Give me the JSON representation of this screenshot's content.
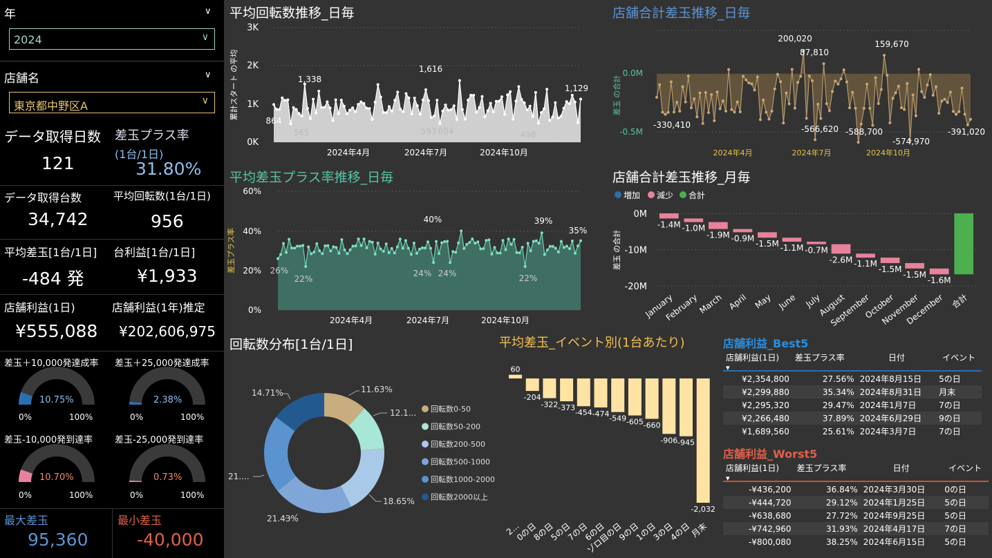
{
  "filters": {
    "year_label": "年",
    "year_value": "2024",
    "store_label": "店舗名",
    "store_value": "東京都中野区A"
  },
  "kpis": {
    "days_label": "データ取得日数",
    "days_value": "121",
    "plus_rate_label": "差玉プラス率",
    "plus_rate_sub": "(1台/1日)",
    "plus_rate_value": "31.80%",
    "units_label": "データ取得台数",
    "units_value": "34,742",
    "avg_spins_label": "平均回転数(1台/1日)",
    "avg_spins_value": "956",
    "avg_diff_label": "平均差玉[1台/1日]",
    "avg_diff_value": "-484 発",
    "profit_unit_label": "台利益[1台/1日]",
    "profit_unit_value": "¥1,933",
    "store_profit_label": "店舗利益(1日)",
    "store_profit_value": "¥555,088",
    "store_profit_year_label": "店舗利益(1年)推定",
    "store_profit_year_value": "¥202,606,975",
    "max_label": "最大差玉",
    "max_value": "95,360",
    "min_label": "最小差玉",
    "min_value": "-40,000"
  },
  "gauges": [
    {
      "label": "差玉＋10,000発達成率",
      "value": "10.75%",
      "fraction": 0.1075,
      "color": "#2a6fb0",
      "text_color": "#8fbfea",
      "min": "0%",
      "max": "100%"
    },
    {
      "label": "差玉＋25,000発達成率",
      "value": "2.38%",
      "fraction": 0.0238,
      "color": "#2a6fb0",
      "text_color": "#8fbfea",
      "min": "0%",
      "max": "100%"
    },
    {
      "label": "差玉-10,000発到達率",
      "value": "10.70%",
      "fraction": 0.107,
      "color": "#e8829c",
      "text_color": "#f08a6a",
      "min": "0%",
      "max": "100%"
    },
    {
      "label": "差玉-25,000発到達率",
      "value": "0.73%",
      "fraction": 0.0073,
      "color": "#e8829c",
      "text_color": "#f08a6a",
      "min": "0%",
      "max": "100%"
    }
  ],
  "charts": {
    "spins": {
      "title": "平均回転数推移_日毎",
      "ylabel": "累計スタート の平均",
      "yticks": [
        "3K",
        "2K",
        "1K",
        "0K"
      ],
      "xticks": [
        "2024年4月",
        "2024年7月",
        "2024年10月"
      ],
      "annotations": [
        "1,338",
        "1,616",
        "1,129",
        "864",
        "565",
        "593",
        "604",
        "498"
      ]
    },
    "store_diff": {
      "title": "店舗合計差玉推移_日毎",
      "ylabel": "差玉 の合計",
      "yticks": [
        "0.0M",
        "-0.5M"
      ],
      "xticks": [
        "2024年4月",
        "2024年7月",
        "2024年10月"
      ],
      "annotations": [
        "200,020",
        "87,810",
        "159,670",
        "-330,410",
        "-566,620",
        "-588,700",
        "-574,970",
        "-391,020"
      ]
    },
    "plus_rate": {
      "title": "平均差玉プラス率推移_日毎",
      "ylabel": "差玉プラス率",
      "yticks": [
        "60%",
        "40%",
        "20%",
        "0%"
      ],
      "xticks": [
        "2024年4月",
        "2024年7月",
        "2024年10月"
      ],
      "annotations": [
        "40%",
        "39%",
        "35%",
        "26%",
        "22%",
        "24%",
        "24%",
        "22%"
      ]
    },
    "spin_dist_title": "回転数分布[1台/1日]",
    "event_title": "平均差玉_イベント別(1台あたり)",
    "best_title": "店舗利益_Best5",
    "worst_title": "店舗利益_Worst5"
  },
  "chart_data": [
    {
      "type": "bar",
      "title": "店舗合計差玉推移_月毎",
      "ylabel": "差玉 の合計",
      "legend": [
        "増加",
        "減少",
        "合計"
      ],
      "legend_colors": [
        "#2a6fb0",
        "#e8829c",
        "#4caf50"
      ],
      "yticks": [
        "0M",
        "-10M",
        "-20M"
      ],
      "ylim": [
        -20,
        0
      ],
      "categories": [
        "January",
        "February",
        "March",
        "April",
        "May",
        "June",
        "July",
        "August",
        "September",
        "October",
        "November",
        "December",
        "合計"
      ],
      "values": [
        -1.4,
        -1.0,
        -1.9,
        -0.9,
        -1.5,
        -1.1,
        -0.7,
        -2.6,
        -1.1,
        -1.5,
        -1.5,
        -1.6,
        -16.8
      ],
      "labels": [
        "-1.4M",
        "-1.0M",
        "-1.9M",
        "-0.9M",
        "-1.5M",
        "-1.1M",
        "-0.7M",
        "-2.6M",
        "-1.1M",
        "-1.5M",
        "-1.5M",
        "-1.6M",
        ""
      ]
    },
    {
      "type": "pie",
      "title": "回転数分布[1台/1日]",
      "categories": [
        "回転数0-50",
        "回転数50-200",
        "回転数200-500",
        "回転数500-1000",
        "回転数1000-2000",
        "回転数2000以上"
      ],
      "values": [
        11.63,
        12.1,
        18.65,
        21.43,
        21.0,
        14.71
      ],
      "labels": [
        "11.63%",
        "12.1...",
        "18.65%",
        "21.43%",
        "21....",
        "14.71%"
      ],
      "colors": [
        "#c8ad7f",
        "#a8e6d6",
        "#a9c9e8",
        "#7fa6d6",
        "#5b93d1",
        "#225a8f"
      ]
    },
    {
      "type": "bar",
      "title": "平均差玉_イベント別(1台あたり)",
      "categories": [
        "2...",
        "0の日",
        "8の日",
        "5の日",
        "7の日",
        "6の日",
        "ゾロ目の日",
        "9の日",
        "1の日",
        "3の日",
        "4の日",
        "月末"
      ],
      "values": [
        60,
        -204,
        -322,
        -373,
        -454,
        -474,
        -549,
        -605,
        -660,
        -906,
        -945,
        -2032
      ],
      "labels": [
        "60",
        "-204",
        "-322",
        "-373",
        "-454",
        "-474",
        "-549",
        "-605",
        "-660",
        "-906",
        "-945",
        "-2,032"
      ]
    },
    {
      "type": "table",
      "title": "店舗利益_Best5",
      "columns": [
        "店舗利益(1日)",
        "差玉プラス率",
        "日付",
        "イベント"
      ],
      "rows": [
        [
          "¥2,354,800",
          "27.56%",
          "2024年8月15日",
          "5の日"
        ],
        [
          "¥2,299,880",
          "35.34%",
          "2024年8月31日",
          "月末"
        ],
        [
          "¥2,295,320",
          "29.47%",
          "2024年1月7日",
          "7の日"
        ],
        [
          "¥2,266,480",
          "37.89%",
          "2024年6月29日",
          "9の日"
        ],
        [
          "¥1,689,560",
          "25.61%",
          "2024年3月7日",
          "7の日"
        ]
      ]
    },
    {
      "type": "table",
      "title": "店舗利益_Worst5",
      "columns": [
        "店舗利益(1日)",
        "差玉プラス率",
        "日付",
        "イベント"
      ],
      "rows": [
        [
          "-¥436,200",
          "36.84%",
          "2024年3月30日",
          "0の日"
        ],
        [
          "-¥444,720",
          "29.12%",
          "2024年1月25日",
          "5の日"
        ],
        [
          "-¥638,680",
          "27.72%",
          "2024年9月25日",
          "5の日"
        ],
        [
          "-¥742,960",
          "31.93%",
          "2024年4月17日",
          "7の日"
        ],
        [
          "-¥800,080",
          "38.25%",
          "2024年6月15日",
          "5の日"
        ]
      ]
    }
  ]
}
